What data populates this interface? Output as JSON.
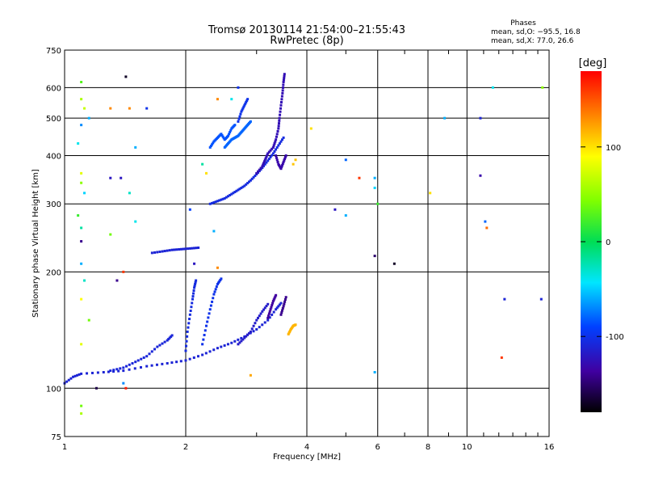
{
  "chart_data": {
    "type": "scatter",
    "title": "Tromsø 20130114 21:54:00–21:55:43",
    "subtitle": "RwPretec (8p)",
    "xlabel": "Frequency [MHz]",
    "ylabel": "Stationary phase Virtual Height [km]",
    "x_scale": "log",
    "y_scale": "log",
    "xlim": [
      1,
      16
    ],
    "ylim": [
      75,
      750
    ],
    "x_ticks": [
      "1",
      "2",
      "4",
      "6",
      "8",
      "10",
      "16"
    ],
    "y_ticks": [
      "75",
      "100",
      "200",
      "300",
      "400",
      "500",
      "600",
      "750"
    ],
    "grid": true,
    "stats": {
      "heading": "Phases",
      "line1": "mean, sd,O: −95.5, 16.8",
      "line2": "mean, sd,X:  77.0, 26.6"
    },
    "colorbar": {
      "label": "[deg]",
      "ticks": [
        "100",
        "0",
        "-100"
      ],
      "tick_values": [
        100,
        0,
        -100
      ],
      "range": [
        -180,
        180
      ]
    },
    "echo_traces": [
      {
        "phase": -110,
        "points": [
          [
            1.0,
            103
          ],
          [
            1.05,
            107
          ],
          [
            1.1,
            109
          ],
          [
            1.25,
            110
          ],
          [
            1.4,
            111
          ],
          [
            1.6,
            114
          ],
          [
            1.8,
            116
          ],
          [
            2.0,
            118
          ],
          [
            2.2,
            122
          ],
          [
            2.4,
            127
          ],
          [
            2.6,
            131
          ],
          [
            2.8,
            136
          ],
          [
            3.0,
            142
          ],
          [
            3.2,
            150
          ],
          [
            3.35,
            160
          ],
          [
            3.45,
            166
          ]
        ]
      },
      {
        "phase": -108,
        "points": [
          [
            1.3,
            111
          ],
          [
            1.4,
            113
          ],
          [
            1.5,
            117
          ],
          [
            1.6,
            121
          ],
          [
            1.7,
            128
          ],
          [
            1.8,
            133
          ],
          [
            1.85,
            137
          ]
        ]
      },
      {
        "phase": -105,
        "points": [
          [
            2.0,
            125
          ],
          [
            2.02,
            140
          ],
          [
            2.05,
            155
          ],
          [
            2.08,
            170
          ],
          [
            2.1,
            182
          ],
          [
            2.12,
            190
          ]
        ]
      },
      {
        "phase": -100,
        "points": [
          [
            2.2,
            130
          ],
          [
            2.25,
            145
          ],
          [
            2.3,
            160
          ],
          [
            2.35,
            175
          ],
          [
            2.4,
            186
          ],
          [
            2.45,
            192
          ]
        ]
      },
      {
        "phase": -115,
        "points": [
          [
            2.7,
            130
          ],
          [
            2.8,
            135
          ],
          [
            2.9,
            140
          ],
          [
            3.0,
            150
          ],
          [
            3.1,
            158
          ],
          [
            3.2,
            165
          ]
        ]
      },
      {
        "phase": -135,
        "points": [
          [
            3.2,
            152
          ],
          [
            3.25,
            160
          ],
          [
            3.3,
            168
          ],
          [
            3.35,
            174
          ]
        ]
      },
      {
        "phase": -140,
        "points": [
          [
            3.45,
            155
          ],
          [
            3.5,
            163
          ],
          [
            3.55,
            172
          ]
        ]
      },
      {
        "phase": 115,
        "points": [
          [
            3.6,
            138
          ],
          [
            3.65,
            142
          ],
          [
            3.7,
            145
          ],
          [
            3.75,
            146
          ]
        ]
      },
      {
        "phase": -110,
        "points": [
          [
            1.65,
            224
          ],
          [
            1.75,
            226
          ],
          [
            1.85,
            228
          ],
          [
            1.95,
            229
          ],
          [
            2.05,
            230
          ],
          [
            2.15,
            231
          ]
        ]
      },
      {
        "phase": -105,
        "points": [
          [
            2.3,
            300
          ],
          [
            2.4,
            305
          ],
          [
            2.5,
            310
          ],
          [
            2.6,
            318
          ],
          [
            2.7,
            326
          ],
          [
            2.8,
            334
          ],
          [
            2.9,
            345
          ],
          [
            3.0,
            358
          ],
          [
            3.1,
            372
          ],
          [
            3.2,
            388
          ],
          [
            3.3,
            405
          ],
          [
            3.4,
            425
          ],
          [
            3.5,
            445
          ]
        ]
      },
      {
        "phase": -125,
        "points": [
          [
            3.0,
            360
          ],
          [
            3.1,
            375
          ],
          [
            3.15,
            390
          ],
          [
            3.2,
            405
          ],
          [
            3.3,
            420
          ],
          [
            3.35,
            440
          ],
          [
            3.4,
            470
          ],
          [
            3.42,
            500
          ],
          [
            3.45,
            540
          ],
          [
            3.48,
            580
          ],
          [
            3.5,
            620
          ],
          [
            3.52,
            650
          ]
        ]
      },
      {
        "phase": -85,
        "points": [
          [
            2.3,
            420
          ],
          [
            2.35,
            435
          ],
          [
            2.4,
            445
          ],
          [
            2.45,
            455
          ],
          [
            2.5,
            440
          ],
          [
            2.55,
            450
          ],
          [
            2.6,
            470
          ],
          [
            2.65,
            480
          ]
        ]
      },
      {
        "phase": -80,
        "points": [
          [
            2.5,
            420
          ],
          [
            2.55,
            430
          ],
          [
            2.6,
            440
          ],
          [
            2.65,
            445
          ],
          [
            2.7,
            450
          ],
          [
            2.75,
            460
          ],
          [
            2.8,
            470
          ],
          [
            2.85,
            480
          ],
          [
            2.9,
            490
          ]
        ]
      },
      {
        "phase": -100,
        "points": [
          [
            2.7,
            490
          ],
          [
            2.75,
            520
          ],
          [
            2.8,
            540
          ],
          [
            2.85,
            560
          ]
        ]
      },
      {
        "phase": -130,
        "points": [
          [
            3.35,
            400
          ],
          [
            3.4,
            380
          ],
          [
            3.45,
            370
          ],
          [
            3.5,
            385
          ],
          [
            3.55,
            400
          ]
        ]
      }
    ],
    "scattered_points": [
      {
        "x": 1.1,
        "y": 620,
        "phase": 30
      },
      {
        "x": 1.1,
        "y": 560,
        "phase": 60
      },
      {
        "x": 1.12,
        "y": 530,
        "phase": 70
      },
      {
        "x": 1.15,
        "y": 500,
        "phase": -60
      },
      {
        "x": 1.1,
        "y": 480,
        "phase": -70
      },
      {
        "x": 1.08,
        "y": 430,
        "phase": -40
      },
      {
        "x": 1.1,
        "y": 360,
        "phase": 80
      },
      {
        "x": 1.1,
        "y": 340,
        "phase": 50
      },
      {
        "x": 1.12,
        "y": 320,
        "phase": -50
      },
      {
        "x": 1.08,
        "y": 280,
        "phase": 20
      },
      {
        "x": 1.1,
        "y": 260,
        "phase": -20
      },
      {
        "x": 1.1,
        "y": 240,
        "phase": -140
      },
      {
        "x": 1.1,
        "y": 210,
        "phase": -60
      },
      {
        "x": 1.12,
        "y": 190,
        "phase": -30
      },
      {
        "x": 1.1,
        "y": 170,
        "phase": 90
      },
      {
        "x": 1.15,
        "y": 150,
        "phase": 40
      },
      {
        "x": 1.1,
        "y": 130,
        "phase": 80
      },
      {
        "x": 1.1,
        "y": 90,
        "phase": 40
      },
      {
        "x": 1.1,
        "y": 86,
        "phase": 60
      },
      {
        "x": 1.2,
        "y": 100,
        "phase": -160
      },
      {
        "x": 1.42,
        "y": 640,
        "phase": -170
      },
      {
        "x": 1.3,
        "y": 530,
        "phase": 130
      },
      {
        "x": 1.45,
        "y": 530,
        "phase": 130
      },
      {
        "x": 1.6,
        "y": 530,
        "phase": -100
      },
      {
        "x": 1.5,
        "y": 420,
        "phase": -60
      },
      {
        "x": 1.38,
        "y": 350,
        "phase": -120
      },
      {
        "x": 1.3,
        "y": 350,
        "phase": -120
      },
      {
        "x": 1.45,
        "y": 320,
        "phase": -30
      },
      {
        "x": 1.3,
        "y": 250,
        "phase": 40
      },
      {
        "x": 1.5,
        "y": 270,
        "phase": -40
      },
      {
        "x": 1.4,
        "y": 200,
        "phase": 160
      },
      {
        "x": 1.35,
        "y": 190,
        "phase": -140
      },
      {
        "x": 1.42,
        "y": 100,
        "phase": 170
      },
      {
        "x": 1.4,
        "y": 103,
        "phase": -70
      },
      {
        "x": 2.2,
        "y": 380,
        "phase": -20
      },
      {
        "x": 2.25,
        "y": 360,
        "phase": 100
      },
      {
        "x": 2.05,
        "y": 290,
        "phase": -90
      },
      {
        "x": 2.35,
        "y": 255,
        "phase": -60
      },
      {
        "x": 2.1,
        "y": 210,
        "phase": -120
      },
      {
        "x": 2.4,
        "y": 205,
        "phase": 130
      },
      {
        "x": 2.6,
        "y": 560,
        "phase": -40
      },
      {
        "x": 2.7,
        "y": 600,
        "phase": -100
      },
      {
        "x": 2.4,
        "y": 560,
        "phase": 130
      },
      {
        "x": 2.9,
        "y": 108,
        "phase": 120
      },
      {
        "x": 3.7,
        "y": 380,
        "phase": 110
      },
      {
        "x": 3.75,
        "y": 390,
        "phase": 110
      },
      {
        "x": 4.1,
        "y": 470,
        "phase": 100
      },
      {
        "x": 4.7,
        "y": 290,
        "phase": -120
      },
      {
        "x": 5.0,
        "y": 390,
        "phase": -80
      },
      {
        "x": 5.0,
        "y": 280,
        "phase": -60
      },
      {
        "x": 5.4,
        "y": 350,
        "phase": 160
      },
      {
        "x": 5.9,
        "y": 350,
        "phase": -60
      },
      {
        "x": 5.9,
        "y": 330,
        "phase": -50
      },
      {
        "x": 6.0,
        "y": 300,
        "phase": 20
      },
      {
        "x": 5.9,
        "y": 220,
        "phase": -150
      },
      {
        "x": 6.6,
        "y": 210,
        "phase": -170
      },
      {
        "x": 5.9,
        "y": 110,
        "phase": -60
      },
      {
        "x": 8.1,
        "y": 320,
        "phase": 100
      },
      {
        "x": 8.8,
        "y": 500,
        "phase": -60
      },
      {
        "x": 10.8,
        "y": 500,
        "phase": -110
      },
      {
        "x": 10.8,
        "y": 355,
        "phase": -130
      },
      {
        "x": 11.1,
        "y": 270,
        "phase": -80
      },
      {
        "x": 11.2,
        "y": 260,
        "phase": 140
      },
      {
        "x": 11.6,
        "y": 600,
        "phase": -40
      },
      {
        "x": 12.2,
        "y": 120,
        "phase": 160
      },
      {
        "x": 12.4,
        "y": 170,
        "phase": -110
      },
      {
        "x": 15.4,
        "y": 600,
        "phase": 50
      },
      {
        "x": 15.3,
        "y": 170,
        "phase": -110
      }
    ]
  }
}
